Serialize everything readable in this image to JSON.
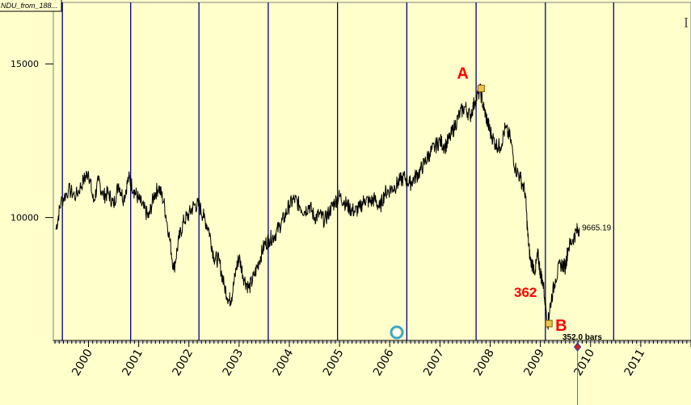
{
  "window": {
    "title_tab": "NDU_from_188..."
  },
  "chart_data": {
    "type": "line",
    "title": "NDU_from_188...",
    "xlabel": "",
    "ylabel": "",
    "x_range": [
      1999.3,
      2012.0
    ],
    "ylim": [
      6000,
      17000
    ],
    "y_ticks": [
      10000,
      15000
    ],
    "y_tick_labels": [
      "10000",
      "15000"
    ],
    "x_tick_labels": [
      "2000",
      "2001",
      "2002",
      "2003",
      "2004",
      "2005",
      "2006",
      "2007",
      "2008",
      "2009",
      "2010",
      "2011"
    ],
    "x_tick_values": [
      2000,
      2001,
      2002,
      2003,
      2004,
      2005,
      2006,
      2007,
      2008,
      2009,
      2010,
      2011
    ],
    "cycle_lines_x": [
      1999.48,
      2000.84,
      2002.2,
      2003.58,
      2004.96,
      2006.34,
      2007.72,
      2009.1,
      2010.46
    ],
    "grid": false,
    "series": [
      {
        "values": [
          [
            1999.35,
            9600
          ],
          [
            1999.45,
            10500
          ],
          [
            1999.6,
            10900
          ],
          [
            1999.75,
            10700
          ],
          [
            1999.9,
            11200
          ],
          [
            2000.0,
            11500
          ],
          [
            2000.1,
            10500
          ],
          [
            2000.2,
            11200
          ],
          [
            2000.3,
            10700
          ],
          [
            2000.4,
            10800
          ],
          [
            2000.5,
            10400
          ],
          [
            2000.6,
            11100
          ],
          [
            2000.7,
            10600
          ],
          [
            2000.8,
            11300
          ],
          [
            2000.9,
            10900
          ],
          [
            2001.0,
            10600
          ],
          [
            2001.1,
            10300
          ],
          [
            2001.2,
            10000
          ],
          [
            2001.3,
            10700
          ],
          [
            2001.4,
            11000
          ],
          [
            2001.5,
            10500
          ],
          [
            2001.6,
            9500
          ],
          [
            2001.7,
            8300
          ],
          [
            2001.8,
            9300
          ],
          [
            2001.9,
            9900
          ],
          [
            2002.0,
            10100
          ],
          [
            2002.1,
            10400
          ],
          [
            2002.2,
            10400
          ],
          [
            2002.3,
            10000
          ],
          [
            2002.4,
            9600
          ],
          [
            2002.5,
            8700
          ],
          [
            2002.6,
            8600
          ],
          [
            2002.7,
            7800
          ],
          [
            2002.8,
            7300
          ],
          [
            2002.85,
            7400
          ],
          [
            2002.95,
            8400
          ],
          [
            2003.0,
            8700
          ],
          [
            2003.1,
            8000
          ],
          [
            2003.2,
            7700
          ],
          [
            2003.3,
            8100
          ],
          [
            2003.4,
            8600
          ],
          [
            2003.5,
            9100
          ],
          [
            2003.6,
            9300
          ],
          [
            2003.7,
            9400
          ],
          [
            2003.8,
            9700
          ],
          [
            2003.9,
            10000
          ],
          [
            2004.0,
            10400
          ],
          [
            2004.1,
            10600
          ],
          [
            2004.2,
            10400
          ],
          [
            2004.3,
            10200
          ],
          [
            2004.4,
            10400
          ],
          [
            2004.5,
            10000
          ],
          [
            2004.6,
            10100
          ],
          [
            2004.7,
            9900
          ],
          [
            2004.8,
            10200
          ],
          [
            2004.9,
            10500
          ],
          [
            2005.0,
            10700
          ],
          [
            2005.1,
            10500
          ],
          [
            2005.2,
            10300
          ],
          [
            2005.3,
            10200
          ],
          [
            2005.4,
            10300
          ],
          [
            2005.5,
            10600
          ],
          [
            2005.6,
            10500
          ],
          [
            2005.7,
            10600
          ],
          [
            2005.8,
            10300
          ],
          [
            2005.9,
            10800
          ],
          [
            2006.0,
            10900
          ],
          [
            2006.1,
            11000
          ],
          [
            2006.2,
            11200
          ],
          [
            2006.3,
            11300
          ],
          [
            2006.4,
            11100
          ],
          [
            2006.5,
            11300
          ],
          [
            2006.6,
            11500
          ],
          [
            2006.7,
            11800
          ],
          [
            2006.8,
            12100
          ],
          [
            2006.9,
            12300
          ],
          [
            2007.0,
            12500
          ],
          [
            2007.1,
            12300
          ],
          [
            2007.2,
            12600
          ],
          [
            2007.3,
            13000
          ],
          [
            2007.4,
            13400
          ],
          [
            2007.5,
            13600
          ],
          [
            2007.6,
            13300
          ],
          [
            2007.7,
            13800
          ],
          [
            2007.8,
            14150
          ],
          [
            2007.88,
            13500
          ],
          [
            2007.95,
            13100
          ],
          [
            2008.0,
            12800
          ],
          [
            2008.1,
            12400
          ],
          [
            2008.2,
            12300
          ],
          [
            2008.3,
            12900
          ],
          [
            2008.4,
            12600
          ],
          [
            2008.5,
            11600
          ],
          [
            2008.6,
            11300
          ],
          [
            2008.7,
            10800
          ],
          [
            2008.75,
            9400
          ],
          [
            2008.8,
            8600
          ],
          [
            2008.9,
            8300
          ],
          [
            2008.95,
            8800
          ],
          [
            2009.0,
            8200
          ],
          [
            2009.05,
            7900
          ],
          [
            2009.15,
            6550
          ],
          [
            2009.2,
            7200
          ],
          [
            2009.3,
            8000
          ],
          [
            2009.4,
            8500
          ],
          [
            2009.5,
            8400
          ],
          [
            2009.55,
            9000
          ],
          [
            2009.65,
            9300
          ],
          [
            2009.72,
            9550
          ],
          [
            2009.78,
            9665
          ]
        ]
      }
    ],
    "annotations": {
      "point_a": {
        "label": "A",
        "x": 2007.82,
        "y": 14200
      },
      "point_b": {
        "label": "B",
        "x": 2009.17,
        "y": 6550
      },
      "count_label": "362",
      "bars_label": "352.0 bars",
      "last_value_label": "9665.19",
      "last_value": 9665.19,
      "marker_x": 2009.74
    }
  },
  "colors": {
    "background": "#ffffcc",
    "cycle_line": "#000080",
    "price_line": "#000000",
    "annotation_red": "#ff0000",
    "marker_fill": "#f2c24c",
    "marker_stroke": "#7a5a00"
  }
}
